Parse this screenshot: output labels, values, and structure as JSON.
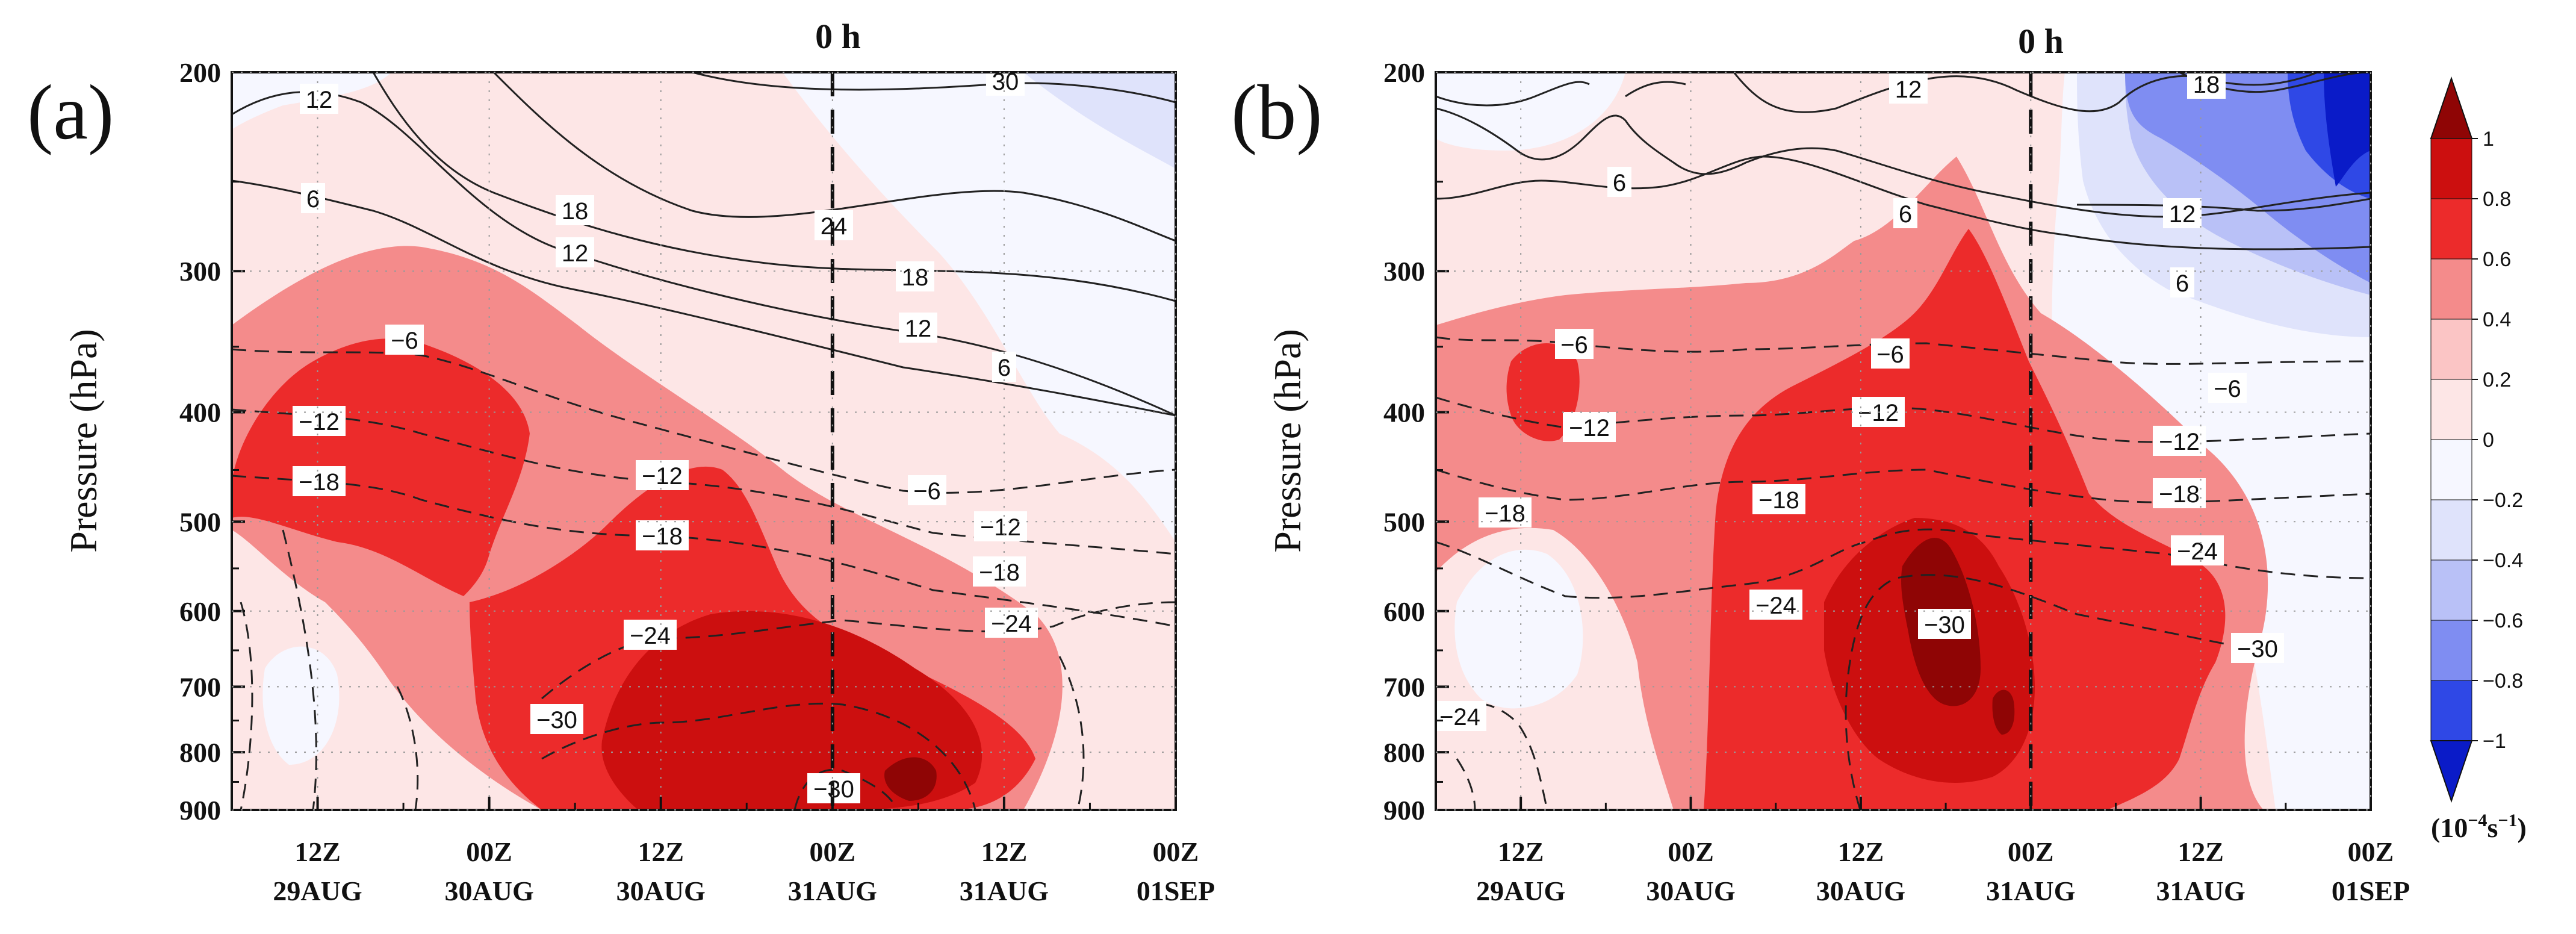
{
  "colors": {
    "levels": [
      "#0a1bc8",
      "#2f48e6",
      "#7f8df2",
      "#b9c1f7",
      "#dfe3fb",
      "#f6f7ff",
      "#fde6e6",
      "#fbc5c5",
      "#f48b8b",
      "#ec2b2b",
      "#cc0f0f",
      "#8f0505"
    ],
    "contour": "#222222"
  },
  "chart_data": [
    {
      "type": "contour",
      "panel_label": "(a)",
      "event_marker": "0 h",
      "ylabel": "Pressure (hPa)",
      "y_ticks": [
        "200",
        "300",
        "400",
        "500",
        "600",
        "700",
        "800",
        "900"
      ],
      "y_values": [
        200,
        300,
        400,
        500,
        600,
        700,
        800,
        900
      ],
      "ylim": [
        900,
        200
      ],
      "x_ticks": [
        {
          "time": "12Z",
          "date": "29AUG"
        },
        {
          "time": "00Z",
          "date": "30AUG"
        },
        {
          "time": "12Z",
          "date": "30AUG"
        },
        {
          "time": "00Z",
          "date": "31AUG"
        },
        {
          "time": "12Z",
          "date": "31AUG"
        },
        {
          "time": "00Z",
          "date": "01SEP"
        }
      ],
      "x_hours_relative": [
        -36,
        -24,
        -12,
        0,
        12,
        24
      ],
      "xlim_hours": [
        -42,
        24
      ],
      "marker_hour": 0,
      "contour_labels": [
        "12",
        "30",
        "6",
        "18",
        "12",
        "24",
        "18",
        "12",
        "6",
        "−6",
        "−12",
        "−18",
        "−12",
        "−6",
        "−18",
        "−12",
        "−18",
        "−24",
        "−24",
        "−30",
        "−30"
      ],
      "shaded_features": [
        {
          "level": 0.6,
          "desc": "upper lobe",
          "hours": [
            -41,
            -25
          ],
          "p": [
            340,
            530
          ]
        },
        {
          "level": 0.6,
          "desc": "lower lobe",
          "hours": [
            -28,
            13
          ],
          "p": [
            440,
            900
          ]
        },
        {
          "level": 0.8,
          "desc": "core",
          "hours": [
            -12,
            10
          ],
          "p": [
            560,
            880
          ]
        },
        {
          "level": 1.0,
          "desc": "max",
          "hours": [
            3,
            6
          ],
          "p": [
            820,
            880
          ]
        }
      ]
    },
    {
      "type": "contour",
      "panel_label": "(b)",
      "event_marker": "0 h",
      "ylabel": "Pressure (hPa)",
      "y_ticks": [
        "200",
        "300",
        "400",
        "500",
        "600",
        "700",
        "800",
        "900"
      ],
      "y_values": [
        200,
        300,
        400,
        500,
        600,
        700,
        800,
        900
      ],
      "ylim": [
        900,
        200
      ],
      "x_ticks": [
        {
          "time": "12Z",
          "date": "29AUG"
        },
        {
          "time": "00Z",
          "date": "30AUG"
        },
        {
          "time": "12Z",
          "date": "30AUG"
        },
        {
          "time": "00Z",
          "date": "31AUG"
        },
        {
          "time": "12Z",
          "date": "31AUG"
        },
        {
          "time": "00Z",
          "date": "01SEP"
        }
      ],
      "x_hours_relative": [
        -36,
        -24,
        -12,
        0,
        12,
        24
      ],
      "xlim_hours": [
        -42,
        24
      ],
      "marker_hour": 0,
      "contour_labels": [
        "18",
        "12",
        "6",
        "12",
        "6",
        "6",
        "−6",
        "−12",
        "−18",
        "−6",
        "−12",
        "−18",
        "−24",
        "−6",
        "−12",
        "−18",
        "−24",
        "−30",
        "−30",
        "−24"
      ],
      "shaded_features": [
        {
          "level": 0.6,
          "desc": "convective column",
          "hours": [
            -23,
            13
          ],
          "p": [
            330,
            900
          ]
        },
        {
          "level": 0.8,
          "desc": "core",
          "hours": [
            -12,
            -3
          ],
          "p": [
            520,
            780
          ]
        },
        {
          "level": 1.0,
          "desc": "max",
          "hours": [
            -9,
            -5
          ],
          "p": [
            560,
            700
          ]
        },
        {
          "level": -0.8,
          "desc": "upper-level negative",
          "hours": [
            6,
            24
          ],
          "p": [
            200,
            320
          ]
        }
      ]
    }
  ],
  "colorbar": {
    "ticks": [
      "1",
      "0.8",
      "0.6",
      "0.4",
      "0.2",
      "0",
      "−0.2",
      "−0.4",
      "−0.6",
      "−0.8",
      "−1"
    ],
    "values": [
      1,
      0.8,
      0.6,
      0.4,
      0.2,
      0,
      -0.2,
      -0.4,
      -0.6,
      -0.8,
      -1
    ],
    "units_base": "(10",
    "units_exp": "−4",
    "units_mid": "s",
    "units_exp2": "−1",
    "units_end": ")"
  }
}
